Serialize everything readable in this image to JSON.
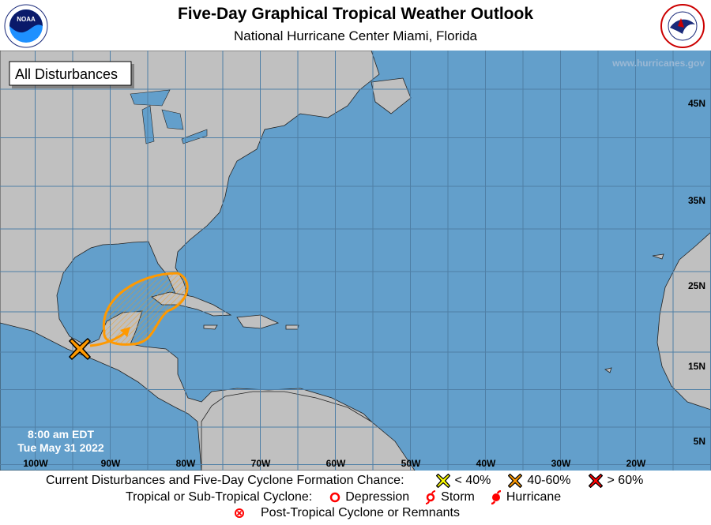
{
  "header": {
    "title": "Five-Day Graphical Tropical Weather Outlook",
    "subtitle": "National Hurricane Center  Miami, Florida",
    "left_logo": "NOAA",
    "right_logo": "NATIONAL WEATHER SERVICE"
  },
  "map": {
    "panel_label": "All Disturbances",
    "watermark": "www.hurricanes.gov",
    "issued_time": "8:00 am EDT",
    "issued_date": "Tue May 31 2022",
    "lon_labels": [
      "100W",
      "90W",
      "80W",
      "70W",
      "60W",
      "50W",
      "40W",
      "30W",
      "20W"
    ],
    "lat_labels": [
      "45N",
      "35N",
      "25N",
      "15N",
      "5N"
    ],
    "colors": {
      "ocean": "#639fcb",
      "land": "#c0c0c0",
      "grid": "#4f7fa6",
      "disturbance_40_60": "#ff9900"
    },
    "disturbances": [
      {
        "category": "40-60%",
        "marker": "orange-x",
        "location": "southern Mexico / Bay of Campeche",
        "area": "Yucatan, southeastern Gulf of Mexico, western Cuba, southern Florida"
      }
    ]
  },
  "legend": {
    "formation_label": "Current Disturbances and Five-Day Cyclone Formation Chance:",
    "low": "< 40%",
    "medium": "40-60%",
    "high": "> 60%",
    "cyclone_label": "Tropical or Sub-Tropical Cyclone:",
    "depression": "Depression",
    "storm": "Storm",
    "hurricane": "Hurricane",
    "post_tropical": "Post-Tropical Cyclone or Remnants",
    "colors": {
      "low": "#ffff00",
      "medium": "#ff9900",
      "high": "#ff0000",
      "cyclone": "#ff0000"
    }
  }
}
